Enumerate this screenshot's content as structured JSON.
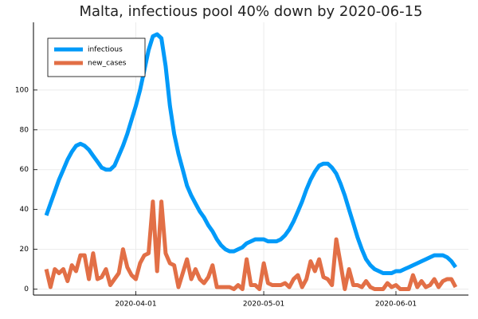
{
  "chart_data": {
    "type": "line",
    "title": "Malta, infectious pool 40% down by 2020-06-15",
    "x": [
      "2020-03-11",
      "2020-03-12",
      "2020-03-13",
      "2020-03-14",
      "2020-03-15",
      "2020-03-16",
      "2020-03-17",
      "2020-03-18",
      "2020-03-19",
      "2020-03-20",
      "2020-03-21",
      "2020-03-22",
      "2020-03-23",
      "2020-03-24",
      "2020-03-25",
      "2020-03-26",
      "2020-03-27",
      "2020-03-28",
      "2020-03-29",
      "2020-03-30",
      "2020-03-31",
      "2020-04-01",
      "2020-04-02",
      "2020-04-03",
      "2020-04-04",
      "2020-04-05",
      "2020-04-06",
      "2020-04-07",
      "2020-04-08",
      "2020-04-09",
      "2020-04-10",
      "2020-04-11",
      "2020-04-12",
      "2020-04-13",
      "2020-04-14",
      "2020-04-15",
      "2020-04-16",
      "2020-04-17",
      "2020-04-18",
      "2020-04-19",
      "2020-04-20",
      "2020-04-21",
      "2020-04-22",
      "2020-04-23",
      "2020-04-24",
      "2020-04-25",
      "2020-04-26",
      "2020-04-27",
      "2020-04-28",
      "2020-04-29",
      "2020-04-30",
      "2020-05-01",
      "2020-05-02",
      "2020-05-03",
      "2020-05-04",
      "2020-05-05",
      "2020-05-06",
      "2020-05-07",
      "2020-05-08",
      "2020-05-09",
      "2020-05-10",
      "2020-05-11",
      "2020-05-12",
      "2020-05-13",
      "2020-05-14",
      "2020-05-15",
      "2020-05-16",
      "2020-05-17",
      "2020-05-18",
      "2020-05-19",
      "2020-05-20",
      "2020-05-21",
      "2020-05-22",
      "2020-05-23",
      "2020-05-24",
      "2020-05-25",
      "2020-05-26",
      "2020-05-27",
      "2020-05-28",
      "2020-05-29",
      "2020-05-30",
      "2020-05-31",
      "2020-06-01",
      "2020-06-02",
      "2020-06-03",
      "2020-06-04",
      "2020-06-05",
      "2020-06-06",
      "2020-06-07",
      "2020-06-08",
      "2020-06-09",
      "2020-06-10",
      "2020-06-11",
      "2020-06-12",
      "2020-06-13",
      "2020-06-14",
      "2020-06-15"
    ],
    "series": [
      {
        "name": "infectious",
        "color": "#009af9",
        "values": [
          37,
          43,
          49,
          55,
          60,
          65,
          69,
          72,
          73,
          72,
          70,
          67,
          64,
          61,
          60,
          60,
          62,
          67,
          72,
          78,
          85,
          92,
          100,
          110,
          120,
          127,
          128,
          126,
          112,
          92,
          78,
          68,
          60,
          52,
          47,
          43,
          39,
          36,
          32,
          29,
          25,
          22,
          20,
          19,
          19,
          20,
          21,
          23,
          24,
          25,
          25,
          25,
          24,
          24,
          24,
          25,
          27,
          30,
          34,
          39,
          44,
          50,
          55,
          59,
          62,
          63,
          63,
          61,
          58,
          53,
          47,
          40,
          33,
          26,
          20,
          15,
          12,
          10,
          9,
          8,
          8,
          8,
          9,
          9,
          10,
          11,
          12,
          13,
          14,
          15,
          16,
          17,
          17,
          17,
          16,
          14,
          11
        ]
      },
      {
        "name": "new_cases",
        "color": "#e26f46",
        "values": [
          10,
          1,
          10,
          8,
          10,
          4,
          12,
          9,
          17,
          17,
          5,
          18,
          5,
          6,
          10,
          2,
          5,
          8,
          20,
          11,
          7,
          5,
          13,
          17,
          18,
          44,
          9,
          44,
          18,
          13,
          12,
          1,
          8,
          15,
          5,
          10,
          5,
          3,
          6,
          12,
          1,
          1,
          1,
          1,
          0,
          2,
          0,
          15,
          2,
          2,
          0,
          13,
          3,
          2,
          2,
          2,
          3,
          1,
          5,
          7,
          1,
          5,
          14,
          9,
          15,
          6,
          5,
          2,
          25,
          13,
          0,
          10,
          2,
          2,
          1,
          4,
          1,
          0,
          0,
          0,
          3,
          1,
          2,
          0,
          0,
          0,
          7,
          1,
          4,
          1,
          2,
          5,
          1,
          4,
          5,
          5,
          1
        ]
      }
    ],
    "xlim": [
      "2020-03-08",
      "2020-06-18"
    ],
    "xticks": [
      "2020-04-01",
      "2020-05-01",
      "2020-06-01"
    ],
    "ylim": [
      -3,
      134
    ],
    "yticks": [
      0,
      20,
      40,
      60,
      80,
      100
    ],
    "grid": true,
    "legend": "top-left"
  }
}
